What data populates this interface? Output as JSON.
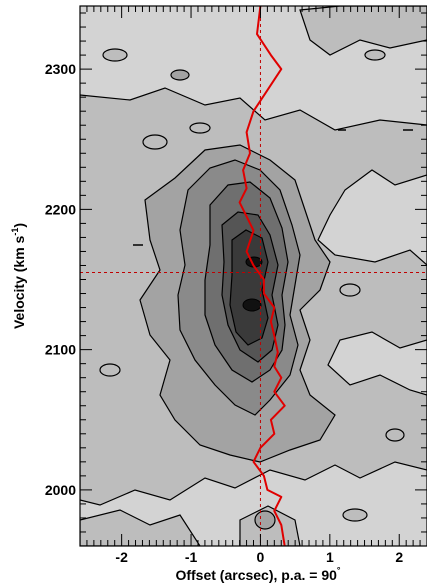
{
  "chart_data": {
    "type": "contour",
    "xlabel": "Offset (arcsec), p.a. = 90",
    "xlabel_degree_symbol": "°",
    "ylabel": "Velocity (km s",
    "ylabel_superscript": "-1",
    "ylabel_close": ")",
    "xlim": [
      -2.6,
      2.4
    ],
    "ylim": [
      1960,
      2345
    ],
    "x_ticks": [
      -2,
      -1,
      0,
      1,
      2
    ],
    "x_tick_labels": [
      "-2",
      "-1",
      "0",
      "1",
      "2"
    ],
    "y_ticks": [
      2000,
      2100,
      2200,
      2300
    ],
    "y_tick_labels": [
      "2000",
      "2100",
      "2200",
      "2300"
    ],
    "reference_lines": {
      "x": 0,
      "y": 2155,
      "style": "dashed",
      "color": "#c00000"
    },
    "rotation_curve": {
      "color": "#e00000",
      "points": [
        [
          0.0,
          2345
        ],
        [
          -0.05,
          2325
        ],
        [
          0.15,
          2310
        ],
        [
          0.3,
          2300
        ],
        [
          0.1,
          2285
        ],
        [
          -0.1,
          2270
        ],
        [
          -0.2,
          2255
        ],
        [
          -0.15,
          2240
        ],
        [
          -0.25,
          2228
        ],
        [
          -0.2,
          2215
        ],
        [
          -0.3,
          2205
        ],
        [
          -0.2,
          2195
        ],
        [
          -0.1,
          2185
        ],
        [
          -0.2,
          2170
        ],
        [
          -0.1,
          2160
        ],
        [
          0.05,
          2150
        ],
        [
          0.05,
          2140
        ],
        [
          0.2,
          2130
        ],
        [
          0.15,
          2120
        ],
        [
          0.2,
          2110
        ],
        [
          0.25,
          2098
        ],
        [
          0.2,
          2088
        ],
        [
          0.3,
          2080
        ],
        [
          0.2,
          2070
        ],
        [
          0.35,
          2060
        ],
        [
          0.15,
          2050
        ],
        [
          0.2,
          2040
        ],
        [
          0.0,
          2030
        ],
        [
          -0.1,
          2020
        ],
        [
          0.05,
          2010
        ],
        [
          0.1,
          2000
        ],
        [
          0.3,
          1995
        ],
        [
          0.2,
          1985
        ],
        [
          0.3,
          1975
        ],
        [
          0.35,
          1960
        ]
      ]
    },
    "contour_levels": {
      "colors": [
        "#d3d3d3",
        "#bdbdbd",
        "#a3a3a3",
        "#8a8a8a",
        "#6f6f6f",
        "#555555",
        "#3a3a3a",
        "#1a1a1a"
      ]
    }
  }
}
